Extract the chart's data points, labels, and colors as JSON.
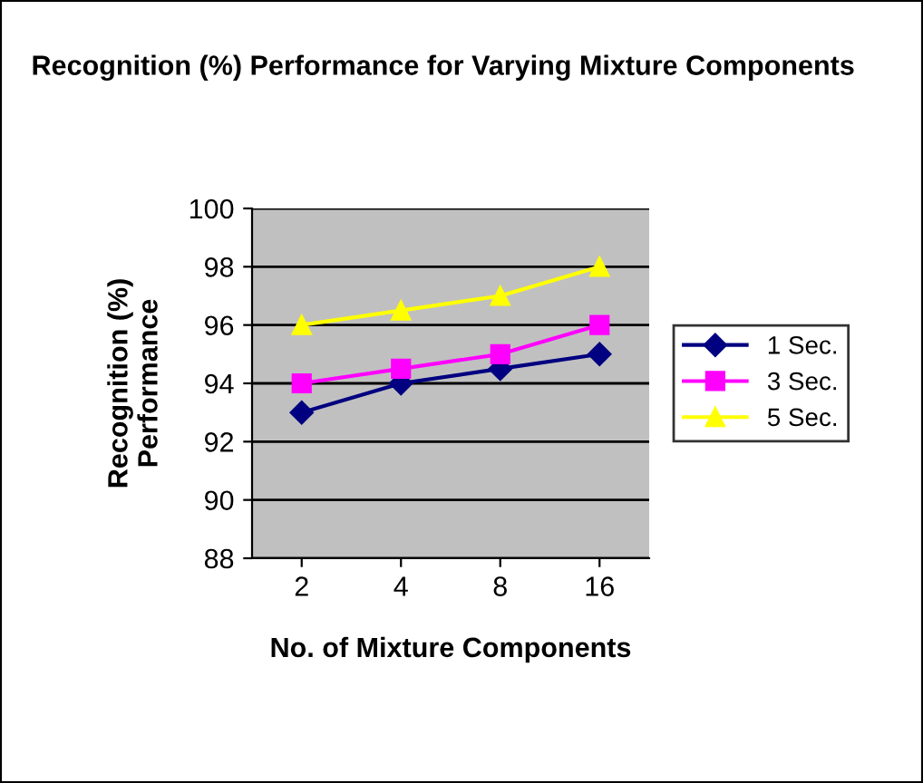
{
  "chart_data": {
    "type": "line",
    "title": "Recognition (%) Performance for Varying Mixture Components",
    "xlabel": "No. of Mixture Components",
    "ylabel": "Recognition (%)\nPerformance",
    "categories": [
      "2",
      "4",
      "8",
      "16"
    ],
    "series": [
      {
        "name": "1 Sec.",
        "color": "#000080",
        "marker": "diamond",
        "values": [
          93,
          94,
          94.5,
          95
        ]
      },
      {
        "name": "3 Sec.",
        "color": "#ff00ff",
        "marker": "square",
        "values": [
          94,
          94.5,
          95,
          96
        ]
      },
      {
        "name": "5 Sec.",
        "color": "#ffff00",
        "marker": "triangle",
        "values": [
          96,
          96.5,
          97,
          98
        ]
      }
    ],
    "ylim": [
      88,
      100
    ],
    "yticks": [
      88,
      90,
      92,
      94,
      96,
      98,
      100
    ],
    "grid": "y",
    "legend": "right",
    "line_style": "solid"
  }
}
